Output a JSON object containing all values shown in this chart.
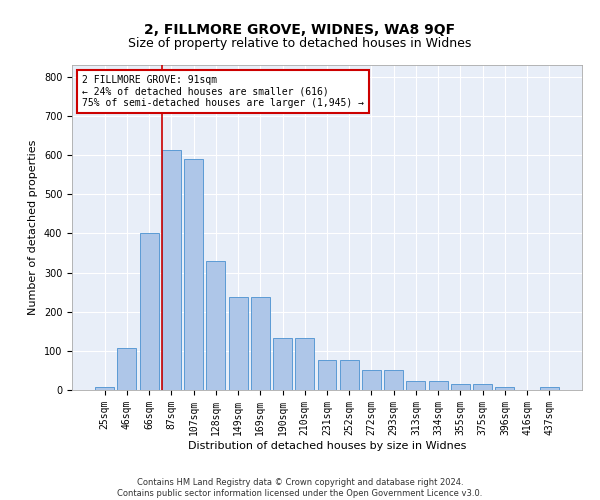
{
  "title": "2, FILLMORE GROVE, WIDNES, WA8 9QF",
  "subtitle": "Size of property relative to detached houses in Widnes",
  "xlabel": "Distribution of detached houses by size in Widnes",
  "ylabel": "Number of detached properties",
  "categories": [
    "25sqm",
    "46sqm",
    "66sqm",
    "87sqm",
    "107sqm",
    "128sqm",
    "149sqm",
    "169sqm",
    "190sqm",
    "210sqm",
    "231sqm",
    "252sqm",
    "272sqm",
    "293sqm",
    "313sqm",
    "334sqm",
    "355sqm",
    "375sqm",
    "396sqm",
    "416sqm",
    "437sqm"
  ],
  "bar_heights": [
    8,
    107,
    402,
    613,
    590,
    330,
    238,
    238,
    133,
    133,
    77,
    77,
    50,
    50,
    22,
    22,
    15,
    15,
    8,
    0,
    8
  ],
  "bar_color": "#aec6e8",
  "bar_edge_color": "#5b9bd5",
  "background_color": "#e8eef8",
  "grid_color": "#ffffff",
  "vline_color": "#cc0000",
  "annotation_text": "2 FILLMORE GROVE: 91sqm\n← 24% of detached houses are smaller (616)\n75% of semi-detached houses are larger (1,945) →",
  "annotation_box_color": "#ffffff",
  "annotation_box_edge": "#cc0000",
  "ylim": [
    0,
    830
  ],
  "yticks": [
    0,
    100,
    200,
    300,
    400,
    500,
    600,
    700,
    800
  ],
  "footer": "Contains HM Land Registry data © Crown copyright and database right 2024.\nContains public sector information licensed under the Open Government Licence v3.0.",
  "title_fontsize": 10,
  "subtitle_fontsize": 9,
  "xlabel_fontsize": 8,
  "ylabel_fontsize": 8,
  "tick_fontsize": 7,
  "footer_fontsize": 6
}
